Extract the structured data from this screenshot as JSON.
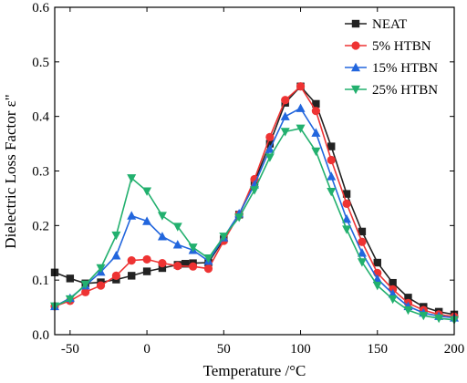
{
  "chart_data": {
    "type": "line",
    "title": "",
    "xlabel": "Temperature /°C",
    "ylabel": "Dielectric Loss Factor ε\"",
    "xlim": [
      -60,
      200
    ],
    "ylim": [
      0.0,
      0.6
    ],
    "x_ticks": [
      -50,
      0,
      50,
      100,
      150,
      200
    ],
    "x_tick_labels": [
      "-50",
      "0",
      "50",
      "100",
      "150",
      "200"
    ],
    "y_ticks": [
      0.0,
      0.1,
      0.2,
      0.3,
      0.4,
      0.5,
      0.6
    ],
    "y_tick_labels": [
      "0.0",
      "0.1",
      "0.2",
      "0.3",
      "0.4",
      "0.5",
      "0.6"
    ],
    "grid": false,
    "legend_position": "top-right",
    "series": [
      {
        "name": "NEAT",
        "color": "#222222",
        "marker": "square",
        "x": [
          -60,
          -50,
          -40,
          -30,
          -20,
          -10,
          0,
          10,
          20,
          25,
          30,
          40,
          50,
          60,
          70,
          80,
          90,
          100,
          110,
          120,
          130,
          140,
          150,
          160,
          170,
          180,
          190,
          200
        ],
        "y": [
          0.114,
          0.103,
          0.094,
          0.096,
          0.101,
          0.108,
          0.116,
          0.122,
          0.128,
          0.13,
          0.131,
          0.132,
          0.175,
          0.22,
          0.28,
          0.35,
          0.425,
          0.455,
          0.423,
          0.345,
          0.258,
          0.189,
          0.132,
          0.095,
          0.068,
          0.051,
          0.042,
          0.037
        ]
      },
      {
        "name": "5% HTBN",
        "color": "#ee3333",
        "marker": "circle",
        "x": [
          -60,
          -50,
          -40,
          -30,
          -20,
          -10,
          0,
          10,
          20,
          30,
          40,
          50,
          60,
          70,
          80,
          90,
          100,
          110,
          120,
          130,
          140,
          150,
          160,
          170,
          180,
          190,
          200
        ],
        "y": [
          0.052,
          0.062,
          0.078,
          0.09,
          0.108,
          0.136,
          0.138,
          0.131,
          0.126,
          0.125,
          0.121,
          0.172,
          0.22,
          0.285,
          0.362,
          0.43,
          0.455,
          0.41,
          0.32,
          0.24,
          0.17,
          0.113,
          0.083,
          0.058,
          0.045,
          0.037,
          0.033
        ]
      },
      {
        "name": "15% HTBN",
        "color": "#2266dd",
        "marker": "triangle-up",
        "x": [
          -60,
          -50,
          -40,
          -30,
          -20,
          -10,
          0,
          10,
          20,
          30,
          40,
          50,
          60,
          70,
          80,
          90,
          100,
          110,
          120,
          130,
          140,
          150,
          160,
          170,
          180,
          190,
          200
        ],
        "y": [
          0.052,
          0.067,
          0.09,
          0.115,
          0.145,
          0.218,
          0.208,
          0.18,
          0.165,
          0.155,
          0.135,
          0.178,
          0.222,
          0.275,
          0.34,
          0.4,
          0.415,
          0.37,
          0.29,
          0.212,
          0.15,
          0.102,
          0.075,
          0.052,
          0.04,
          0.034,
          0.031
        ]
      },
      {
        "name": "25% HTBN",
        "color": "#22b06e",
        "marker": "triangle-down",
        "x": [
          -60,
          -50,
          -40,
          -30,
          -20,
          -10,
          0,
          10,
          20,
          30,
          40,
          50,
          60,
          70,
          80,
          90,
          100,
          110,
          120,
          130,
          140,
          150,
          160,
          170,
          180,
          190,
          200
        ],
        "y": [
          0.052,
          0.065,
          0.092,
          0.122,
          0.182,
          0.287,
          0.263,
          0.218,
          0.198,
          0.16,
          0.14,
          0.18,
          0.215,
          0.265,
          0.325,
          0.372,
          0.378,
          0.336,
          0.262,
          0.193,
          0.133,
          0.09,
          0.065,
          0.045,
          0.035,
          0.03,
          0.027
        ]
      }
    ]
  }
}
